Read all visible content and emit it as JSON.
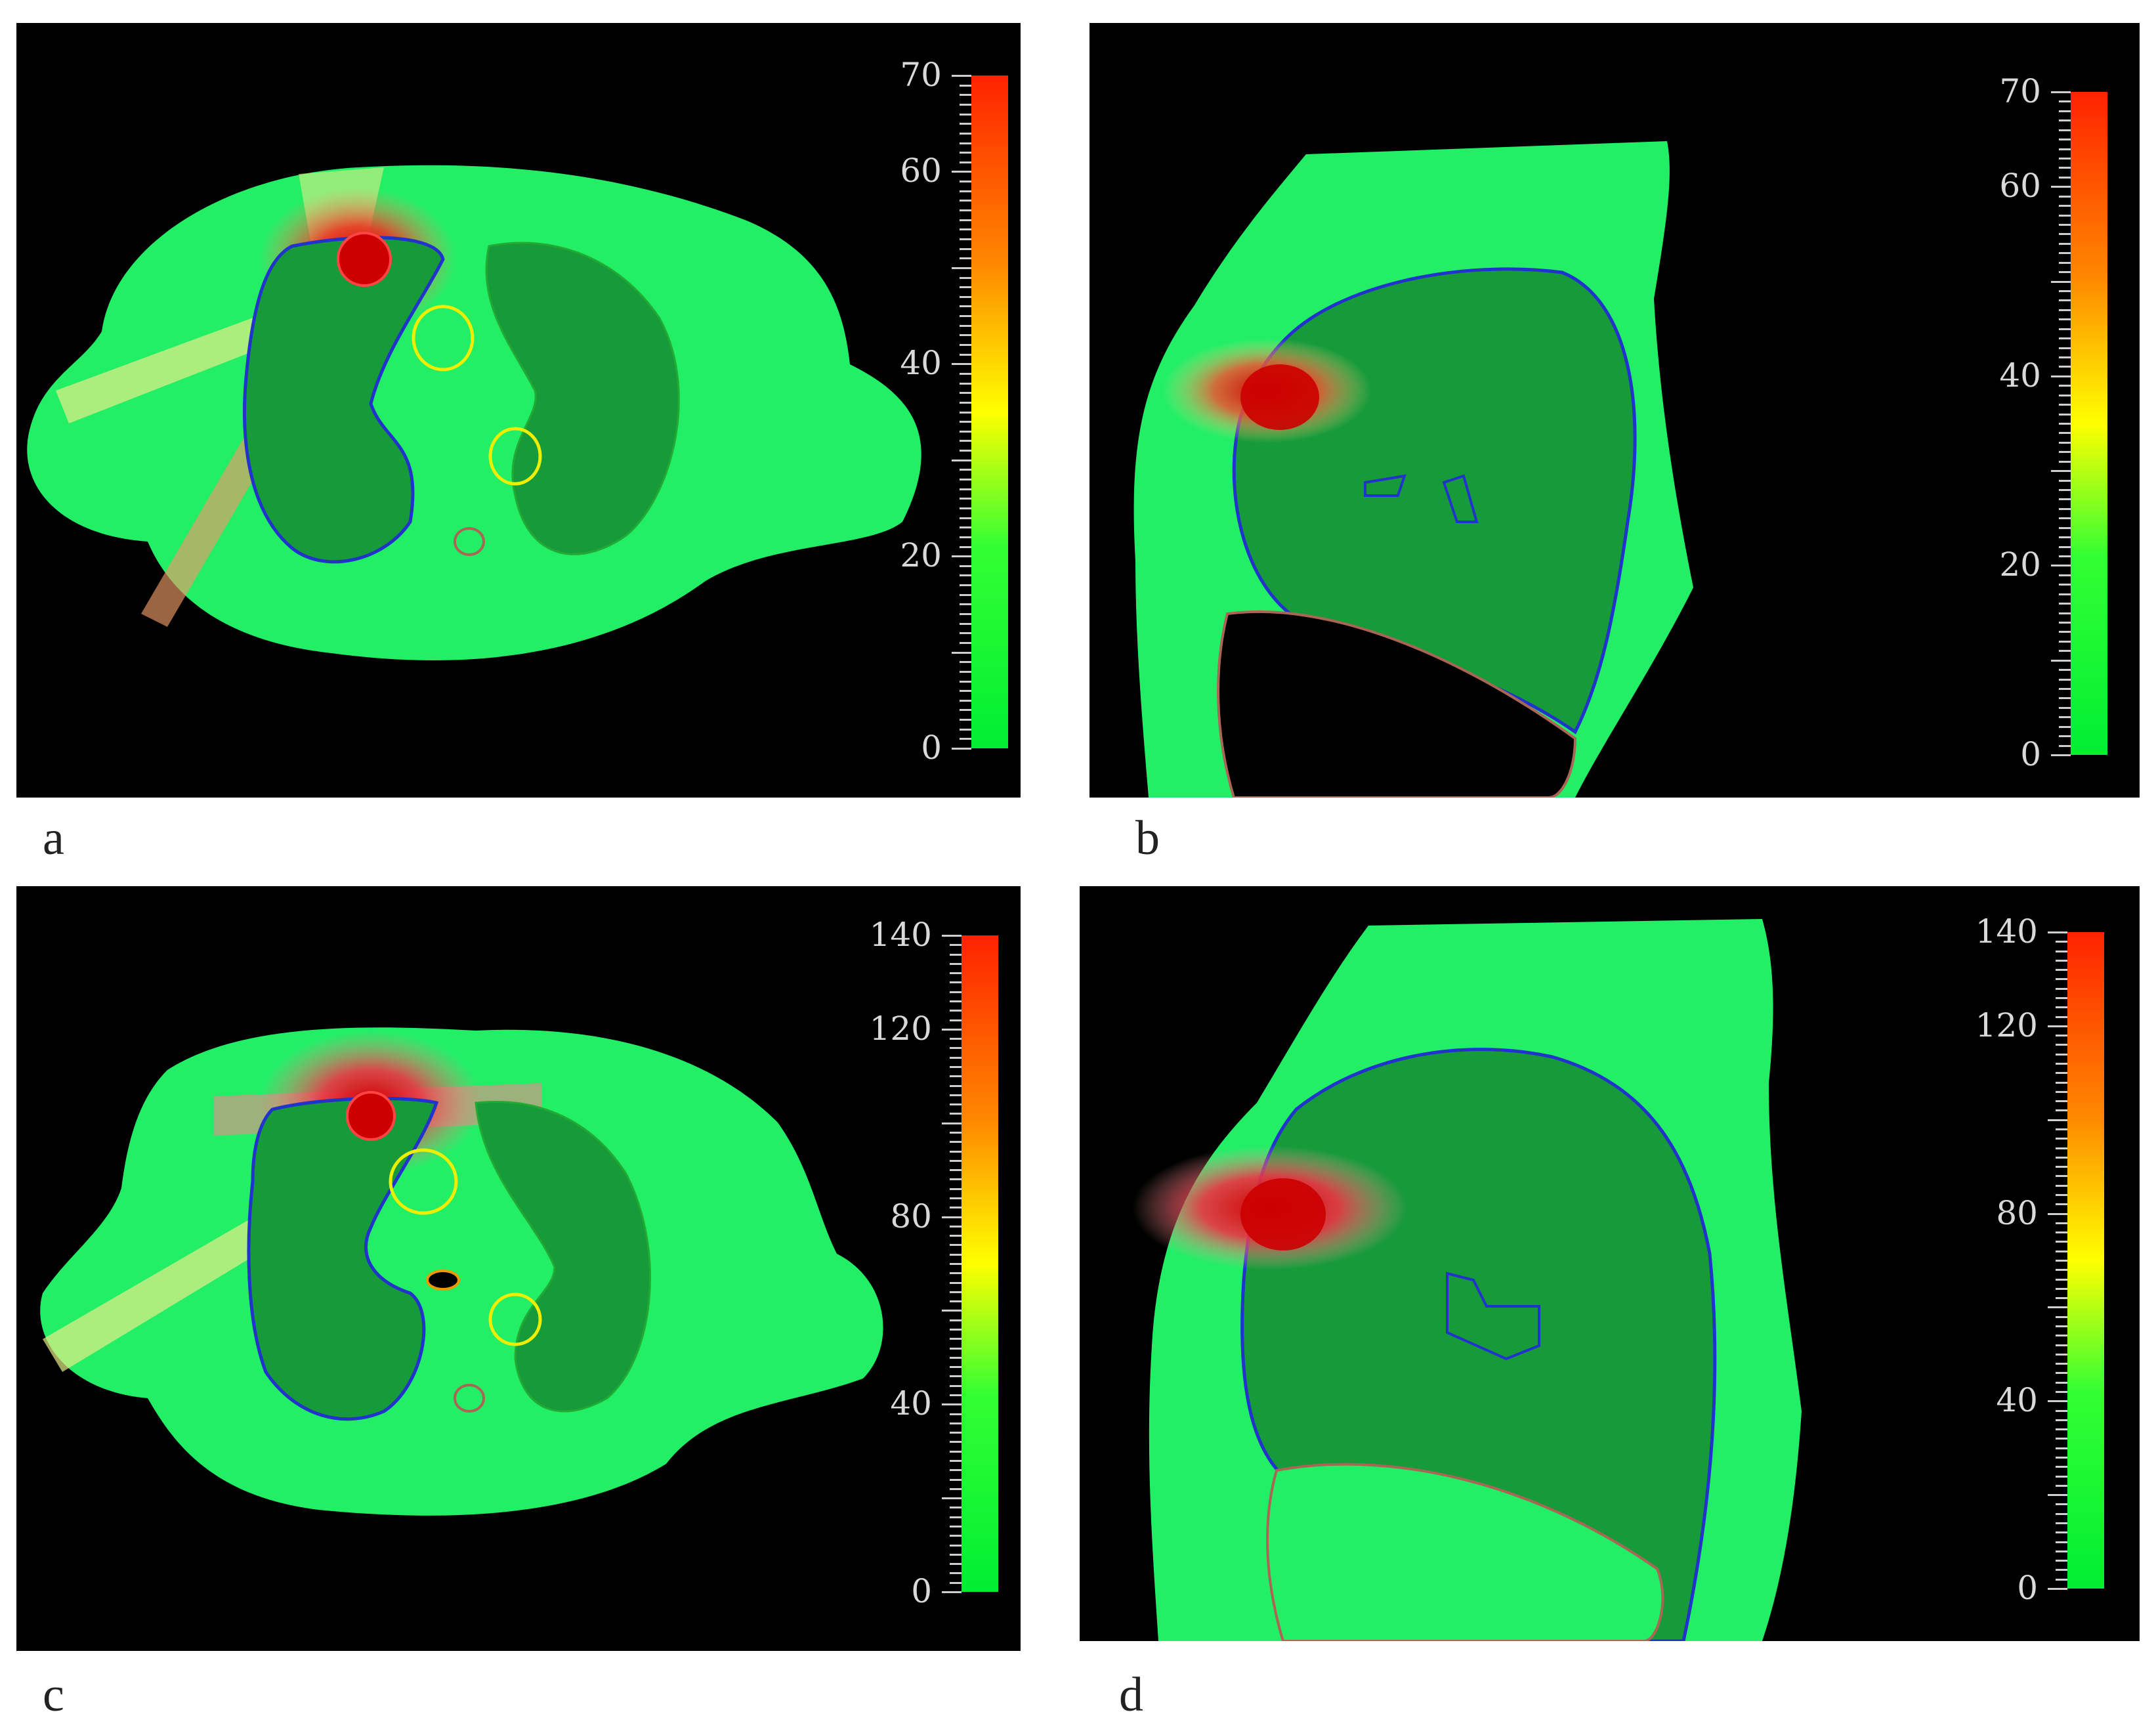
{
  "panels": [
    {
      "label": "a",
      "colorbar": {
        "max": 70,
        "labels": [
          "70",
          "60",
          "40",
          "20",
          "0"
        ]
      }
    },
    {
      "label": "b",
      "colorbar": {
        "max": 70,
        "labels": [
          "70",
          "60",
          "40",
          "20",
          "0"
        ]
      }
    },
    {
      "label": "c",
      "colorbar": {
        "max": 140,
        "labels": [
          "140",
          "120",
          "80",
          "40",
          "0"
        ]
      }
    },
    {
      "label": "d",
      "colorbar": {
        "max": 140,
        "labels": [
          "140",
          "120",
          "80",
          "40",
          "0"
        ]
      }
    }
  ],
  "colors": {
    "body_green": "#22ee66",
    "lung_green": "#169a3a",
    "dose_red": "#dd1111",
    "contour_blue": "#2233cc",
    "contour_yellow": "#eeee00"
  }
}
